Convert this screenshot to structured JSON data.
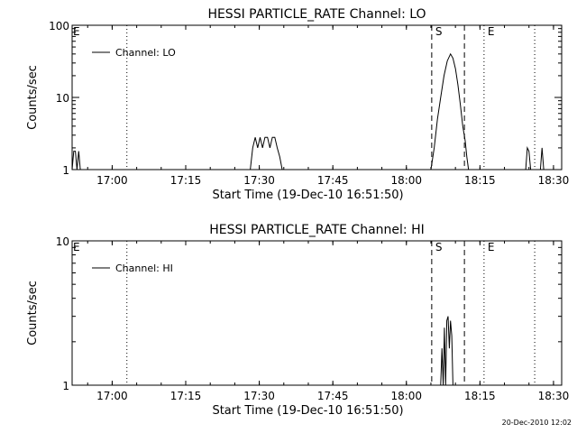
{
  "chart_data": [
    {
      "type": "line",
      "title": "HESSI PARTICLE_RATE Channel: LO",
      "xlabel": "Start Time (19-Dec-10 16:51:50)",
      "ylabel": "Counts/sec",
      "yscale": "log",
      "ylim": [
        1,
        100
      ],
      "xlim": [
        "16:51:50",
        "18:31:40"
      ],
      "x_ticks": [
        "17:00",
        "17:15",
        "17:30",
        "17:45",
        "18:00",
        "18:15",
        "18:30"
      ],
      "y_ticks": [
        "1",
        "10",
        "100"
      ],
      "legend": "top-left",
      "grid": false,
      "series": [
        {
          "name": "Channel: LO",
          "x": [
            "16:51:50",
            "16:52:10",
            "16:52:30",
            "16:52:50",
            "16:53:10",
            "16:53:30",
            "17:28:10",
            "17:28:40",
            "17:29:10",
            "17:29:40",
            "17:30:10",
            "17:30:40",
            "17:31:10",
            "17:31:40",
            "17:32:10",
            "17:32:40",
            "17:33:10",
            "17:33:40",
            "17:34:10",
            "17:34:40",
            "17:35:00",
            "18:05:00",
            "18:05:40",
            "18:06:20",
            "18:07:00",
            "18:07:40",
            "18:08:20",
            "18:09:00",
            "18:09:30",
            "18:10:00",
            "18:10:30",
            "18:11:00",
            "18:11:30",
            "18:12:00",
            "18:12:20",
            "18:12:40",
            "18:24:20",
            "18:24:40",
            "18:25:00",
            "18:25:20",
            "18:27:20",
            "18:27:40",
            "18:28:00"
          ],
          "values": [
            1.0,
            1.8,
            1.8,
            1.0,
            1.8,
            1.0,
            1.0,
            2.0,
            2.8,
            2.0,
            2.8,
            2.0,
            2.8,
            2.8,
            2.0,
            2.8,
            2.8,
            2.0,
            1.5,
            1.0,
            1.0,
            1.0,
            2.0,
            5.0,
            10,
            20,
            32,
            40,
            35,
            25,
            15,
            8,
            4,
            2.5,
            1.5,
            1.0,
            1.0,
            2.0,
            1.8,
            1.0,
            1.0,
            2.0,
            1.0
          ]
        }
      ],
      "markers": [
        {
          "time": "17:03:00",
          "style": "dotted",
          "label": ""
        },
        {
          "time": "18:05:10",
          "style": "dashed",
          "label": "S"
        },
        {
          "time": "18:11:50",
          "style": "dashed",
          "label": ""
        },
        {
          "time": "18:15:50",
          "style": "dotted",
          "label": "E"
        },
        {
          "time": "18:26:10",
          "style": "dotted",
          "label": ""
        }
      ],
      "corner_label": "E"
    },
    {
      "type": "line",
      "title": "HESSI PARTICLE_RATE Channel: HI",
      "xlabel": "Start Time (19-Dec-10 16:51:50)",
      "ylabel": "Counts/sec",
      "yscale": "log",
      "ylim": [
        1,
        10
      ],
      "xlim": [
        "16:51:50",
        "18:31:40"
      ],
      "x_ticks": [
        "17:00",
        "17:15",
        "17:30",
        "17:45",
        "18:00",
        "18:15",
        "18:30"
      ],
      "y_ticks": [
        "1",
        "10"
      ],
      "legend": "top-left",
      "grid": false,
      "series": [
        {
          "name": "Channel: HI",
          "x": [
            "18:07:00",
            "18:07:15",
            "18:07:30",
            "18:07:45",
            "18:08:00",
            "18:08:15",
            "18:08:30",
            "18:08:45",
            "18:09:00",
            "18:09:15",
            "18:09:30"
          ],
          "values": [
            1.0,
            1.8,
            1.0,
            2.5,
            1.0,
            2.8,
            3.0,
            1.8,
            2.8,
            2.2,
            1.0
          ]
        }
      ],
      "markers": [
        {
          "time": "17:03:00",
          "style": "dotted",
          "label": ""
        },
        {
          "time": "18:05:10",
          "style": "dashed",
          "label": "S"
        },
        {
          "time": "18:11:50",
          "style": "dashed",
          "label": ""
        },
        {
          "time": "18:15:50",
          "style": "dotted",
          "label": "E"
        },
        {
          "time": "18:26:10",
          "style": "dotted",
          "label": ""
        }
      ],
      "corner_label": "E"
    }
  ],
  "footer": {
    "timestamp": "20-Dec-2010 12:02"
  }
}
